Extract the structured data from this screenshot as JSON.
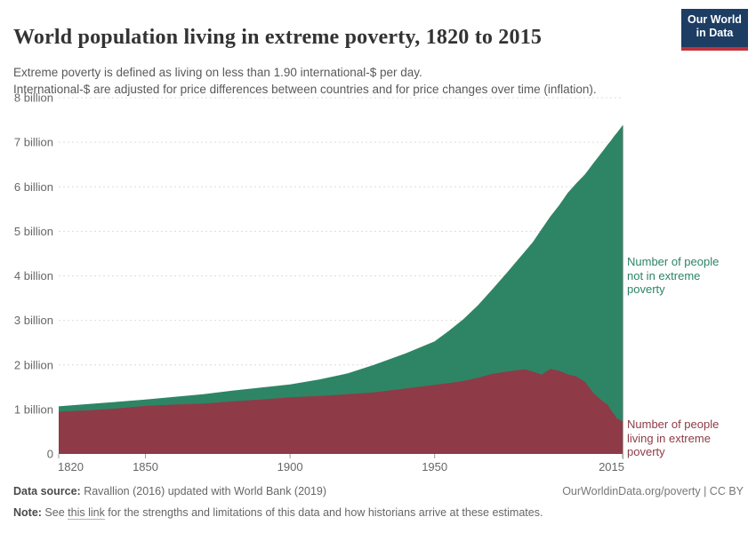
{
  "header": {
    "title": "World population living in extreme poverty, 1820 to 2015",
    "subtitle_line1": "Extreme poverty is defined as living on less than 1.90 international-$ per day.",
    "subtitle_line2": "International-$ are adjusted for price differences between countries and for price changes over time (inflation).",
    "logo": {
      "line1": "Our World",
      "line2": "in Data",
      "bg_color": "#1d3d63",
      "bar_color": "#c0323b"
    }
  },
  "chart_data": {
    "type": "area",
    "stacked": true,
    "title": "World population living in extreme poverty, 1820 to 2015",
    "xlabel": "",
    "ylabel": "",
    "grid": "dashed-horizontal",
    "xlim": [
      1820,
      2015
    ],
    "ylim_billions": [
      0,
      8
    ],
    "x": [
      1820,
      1830,
      1840,
      1850,
      1860,
      1870,
      1880,
      1890,
      1900,
      1910,
      1920,
      1929,
      1940,
      1950,
      1955,
      1960,
      1965,
      1970,
      1975,
      1981,
      1984,
      1987,
      1990,
      1993,
      1996,
      1999,
      2002,
      2005,
      2008,
      2010,
      2011,
      2012,
      2013,
      2015
    ],
    "series": [
      {
        "name": "Number of people living in extreme poverty",
        "color": "#8e3b47",
        "unit": "billion",
        "values": [
          0.95,
          0.98,
          1.02,
          1.08,
          1.11,
          1.13,
          1.18,
          1.22,
          1.27,
          1.3,
          1.34,
          1.38,
          1.47,
          1.55,
          1.59,
          1.64,
          1.71,
          1.8,
          1.85,
          1.9,
          1.85,
          1.78,
          1.91,
          1.87,
          1.79,
          1.74,
          1.62,
          1.36,
          1.19,
          1.1,
          0.98,
          0.9,
          0.8,
          0.73
        ]
      },
      {
        "name": "Number of people not in extreme poverty",
        "color": "#2e8565",
        "unit": "billion",
        "values": [
          0.12,
          0.14,
          0.15,
          0.14,
          0.17,
          0.21,
          0.24,
          0.27,
          0.29,
          0.37,
          0.47,
          0.62,
          0.79,
          0.98,
          1.18,
          1.39,
          1.63,
          1.9,
          2.22,
          2.63,
          2.91,
          3.27,
          3.42,
          3.71,
          4.07,
          4.34,
          4.66,
          5.18,
          5.6,
          5.86,
          6.06,
          6.23,
          6.41,
          6.65
        ]
      }
    ],
    "y_axis": {
      "ticks": [
        0,
        1,
        2,
        3,
        4,
        5,
        6,
        7,
        8
      ],
      "tick_labels": [
        "0",
        "1 billion",
        "2 billion",
        "3 billion",
        "4 billion",
        "5 billion",
        "6 billion",
        "7 billion",
        "8 billion"
      ]
    },
    "x_axis": {
      "ticks": [
        1820,
        1850,
        1900,
        1950,
        2015
      ],
      "tick_labels": [
        "1820",
        "1850",
        "1900",
        "1950",
        "2015"
      ]
    },
    "right_labels": [
      {
        "text": "Number of people\nnot in extreme\npoverty",
        "color": "#2c8465"
      },
      {
        "text": "Number of people\nliving in extreme\npoverty",
        "color": "#8e3b47"
      }
    ]
  },
  "footer": {
    "data_source_label": "Data source:",
    "data_source_text": " Ravallion (2016) updated with World Bank (2019)",
    "right_text": "OurWorldinData.org/poverty | CC BY",
    "note_label": "Note:",
    "note_before_link": " See ",
    "note_link": "this link",
    "note_after_link": " for the strengths and limitations of this data and how historians arrive at these estimates."
  }
}
